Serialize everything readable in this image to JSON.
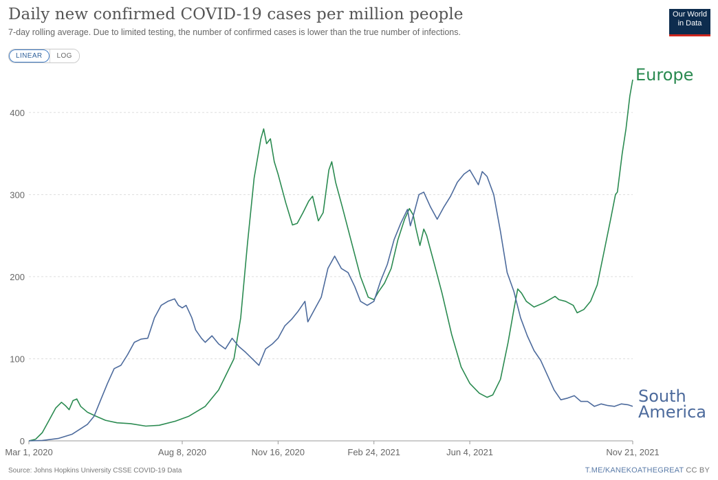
{
  "header": {
    "title": "Daily new confirmed COVID-19 cases per million people",
    "subtitle": "7-day rolling average. Due to limited testing, the number of confirmed cases is lower than the true number of infections.",
    "logo_line1": "Our World",
    "logo_line2": "in Data"
  },
  "scale_toggle": {
    "linear_label": "LINEAR",
    "log_label": "LOG",
    "selected": "LINEAR"
  },
  "footer": {
    "source": "Source: Johns Hopkins University CSSE COVID-19 Data",
    "credit_url": "T.ME/KANEKOATHEGREAT",
    "license": "CC BY"
  },
  "chart_data": {
    "type": "line",
    "title": "Daily new confirmed COVID-19 cases per million people",
    "xlabel": "",
    "ylabel": "",
    "xlim": [
      "2020-03-01",
      "2021-11-21"
    ],
    "ylim": [
      0,
      445
    ],
    "y_ticks": [
      0,
      100,
      200,
      300,
      400
    ],
    "x_tick_labels": [
      "Mar 1, 2020",
      "Aug 8, 2020",
      "Nov 16, 2020",
      "Feb 24, 2021",
      "Jun 4, 2021",
      "Nov 21, 2021"
    ],
    "x_tick_dates": [
      "2020-03-01",
      "2020-08-08",
      "2020-11-16",
      "2021-02-24",
      "2021-06-04",
      "2021-11-21"
    ],
    "grid": "horizontal-dashed",
    "legend": "line-end labels",
    "series": [
      {
        "name": "Europe",
        "color": "#2a8a50",
        "points": [
          [
            "2020-03-01",
            0
          ],
          [
            "2020-03-08",
            2
          ],
          [
            "2020-03-15",
            10
          ],
          [
            "2020-03-22",
            25
          ],
          [
            "2020-03-29",
            40
          ],
          [
            "2020-04-04",
            47
          ],
          [
            "2020-04-08",
            43
          ],
          [
            "2020-04-12",
            38
          ],
          [
            "2020-04-16",
            49
          ],
          [
            "2020-04-20",
            51
          ],
          [
            "2020-04-24",
            42
          ],
          [
            "2020-05-01",
            35
          ],
          [
            "2020-05-10",
            30
          ],
          [
            "2020-05-20",
            25
          ],
          [
            "2020-06-01",
            22
          ],
          [
            "2020-06-15",
            21
          ],
          [
            "2020-07-01",
            18
          ],
          [
            "2020-07-15",
            19
          ],
          [
            "2020-08-01",
            24
          ],
          [
            "2020-08-15",
            30
          ],
          [
            "2020-09-01",
            42
          ],
          [
            "2020-09-15",
            62
          ],
          [
            "2020-10-01",
            100
          ],
          [
            "2020-10-08",
            150
          ],
          [
            "2020-10-15",
            240
          ],
          [
            "2020-10-22",
            320
          ],
          [
            "2020-10-29",
            368
          ],
          [
            "2020-11-01",
            380
          ],
          [
            "2020-11-04",
            362
          ],
          [
            "2020-11-08",
            368
          ],
          [
            "2020-11-12",
            340
          ],
          [
            "2020-11-16",
            325
          ],
          [
            "2020-11-24",
            290
          ],
          [
            "2020-12-01",
            263
          ],
          [
            "2020-12-06",
            265
          ],
          [
            "2020-12-12",
            278
          ],
          [
            "2020-12-18",
            292
          ],
          [
            "2020-12-22",
            298
          ],
          [
            "2020-12-28",
            268
          ],
          [
            "2021-01-02",
            278
          ],
          [
            "2021-01-08",
            330
          ],
          [
            "2021-01-11",
            340
          ],
          [
            "2021-01-15",
            315
          ],
          [
            "2021-01-22",
            285
          ],
          [
            "2021-02-01",
            240
          ],
          [
            "2021-02-10",
            200
          ],
          [
            "2021-02-18",
            175
          ],
          [
            "2021-02-24",
            172
          ],
          [
            "2021-03-01",
            182
          ],
          [
            "2021-03-07",
            192
          ],
          [
            "2021-03-14",
            210
          ],
          [
            "2021-03-21",
            245
          ],
          [
            "2021-03-28",
            270
          ],
          [
            "2021-04-02",
            283
          ],
          [
            "2021-04-06",
            275
          ],
          [
            "2021-04-09",
            258
          ],
          [
            "2021-04-13",
            238
          ],
          [
            "2021-04-17",
            258
          ],
          [
            "2021-04-20",
            250
          ],
          [
            "2021-04-27",
            220
          ],
          [
            "2021-05-06",
            180
          ],
          [
            "2021-05-16",
            130
          ],
          [
            "2021-05-26",
            90
          ],
          [
            "2021-06-04",
            70
          ],
          [
            "2021-06-14",
            58
          ],
          [
            "2021-06-22",
            53
          ],
          [
            "2021-06-28",
            56
          ],
          [
            "2021-07-06",
            75
          ],
          [
            "2021-07-14",
            120
          ],
          [
            "2021-07-20",
            160
          ],
          [
            "2021-07-24",
            185
          ],
          [
            "2021-07-28",
            180
          ],
          [
            "2021-08-02",
            170
          ],
          [
            "2021-08-10",
            163
          ],
          [
            "2021-08-20",
            168
          ],
          [
            "2021-09-01",
            176
          ],
          [
            "2021-09-05",
            172
          ],
          [
            "2021-09-12",
            170
          ],
          [
            "2021-09-20",
            165
          ],
          [
            "2021-09-24",
            156
          ],
          [
            "2021-10-01",
            160
          ],
          [
            "2021-10-08",
            170
          ],
          [
            "2021-10-15",
            190
          ],
          [
            "2021-10-22",
            230
          ],
          [
            "2021-10-29",
            270
          ],
          [
            "2021-11-03",
            300
          ],
          [
            "2021-11-05",
            303
          ],
          [
            "2021-11-10",
            350
          ],
          [
            "2021-11-14",
            380
          ],
          [
            "2021-11-18",
            420
          ],
          [
            "2021-11-21",
            440
          ]
        ]
      },
      {
        "name": "South America",
        "color": "#4c6a9c",
        "points": [
          [
            "2020-03-01",
            0
          ],
          [
            "2020-03-15",
            0.5
          ],
          [
            "2020-04-01",
            3
          ],
          [
            "2020-04-15",
            8
          ],
          [
            "2020-05-01",
            20
          ],
          [
            "2020-05-08",
            30
          ],
          [
            "2020-05-15",
            50
          ],
          [
            "2020-05-22",
            70
          ],
          [
            "2020-05-29",
            88
          ],
          [
            "2020-06-05",
            92
          ],
          [
            "2020-06-12",
            105
          ],
          [
            "2020-06-19",
            120
          ],
          [
            "2020-06-26",
            124
          ],
          [
            "2020-07-03",
            125
          ],
          [
            "2020-07-10",
            150
          ],
          [
            "2020-07-17",
            165
          ],
          [
            "2020-07-24",
            170
          ],
          [
            "2020-07-31",
            173
          ],
          [
            "2020-08-04",
            165
          ],
          [
            "2020-08-08",
            162
          ],
          [
            "2020-08-12",
            165
          ],
          [
            "2020-08-18",
            150
          ],
          [
            "2020-08-22",
            135
          ],
          [
            "2020-08-28",
            125
          ],
          [
            "2020-09-01",
            120
          ],
          [
            "2020-09-08",
            128
          ],
          [
            "2020-09-15",
            118
          ],
          [
            "2020-09-22",
            112
          ],
          [
            "2020-09-29",
            125
          ],
          [
            "2020-10-06",
            115
          ],
          [
            "2020-10-13",
            108
          ],
          [
            "2020-10-20",
            100
          ],
          [
            "2020-10-27",
            92
          ],
          [
            "2020-11-03",
            112
          ],
          [
            "2020-11-10",
            118
          ],
          [
            "2020-11-16",
            125
          ],
          [
            "2020-11-23",
            140
          ],
          [
            "2020-11-30",
            148
          ],
          [
            "2020-12-07",
            158
          ],
          [
            "2020-12-14",
            170
          ],
          [
            "2020-12-17",
            145
          ],
          [
            "2020-12-24",
            160
          ],
          [
            "2020-12-31",
            175
          ],
          [
            "2021-01-07",
            210
          ],
          [
            "2021-01-14",
            225
          ],
          [
            "2021-01-21",
            210
          ],
          [
            "2021-01-28",
            205
          ],
          [
            "2021-02-04",
            188
          ],
          [
            "2021-02-10",
            170
          ],
          [
            "2021-02-17",
            165
          ],
          [
            "2021-02-24",
            170
          ],
          [
            "2021-03-03",
            195
          ],
          [
            "2021-03-10",
            215
          ],
          [
            "2021-03-17",
            245
          ],
          [
            "2021-03-24",
            265
          ],
          [
            "2021-03-31",
            282
          ],
          [
            "2021-04-03",
            262
          ],
          [
            "2021-04-07",
            278
          ],
          [
            "2021-04-12",
            300
          ],
          [
            "2021-04-17",
            303
          ],
          [
            "2021-04-24",
            285
          ],
          [
            "2021-05-01",
            270
          ],
          [
            "2021-05-08",
            285
          ],
          [
            "2021-05-15",
            298
          ],
          [
            "2021-05-22",
            315
          ],
          [
            "2021-05-29",
            325
          ],
          [
            "2021-06-04",
            330
          ],
          [
            "2021-06-08",
            322
          ],
          [
            "2021-06-13",
            312
          ],
          [
            "2021-06-17",
            328
          ],
          [
            "2021-06-22",
            322
          ],
          [
            "2021-06-29",
            300
          ],
          [
            "2021-07-06",
            255
          ],
          [
            "2021-07-13",
            205
          ],
          [
            "2021-07-20",
            182
          ],
          [
            "2021-07-27",
            150
          ],
          [
            "2021-08-03",
            128
          ],
          [
            "2021-08-10",
            110
          ],
          [
            "2021-08-17",
            98
          ],
          [
            "2021-08-24",
            80
          ],
          [
            "2021-08-31",
            62
          ],
          [
            "2021-09-07",
            50
          ],
          [
            "2021-09-14",
            52
          ],
          [
            "2021-09-21",
            55
          ],
          [
            "2021-09-28",
            48
          ],
          [
            "2021-10-05",
            48
          ],
          [
            "2021-10-12",
            42
          ],
          [
            "2021-10-19",
            45
          ],
          [
            "2021-10-26",
            43
          ],
          [
            "2021-11-02",
            42
          ],
          [
            "2021-11-09",
            45
          ],
          [
            "2021-11-16",
            44
          ],
          [
            "2021-11-21",
            42
          ]
        ]
      }
    ]
  }
}
